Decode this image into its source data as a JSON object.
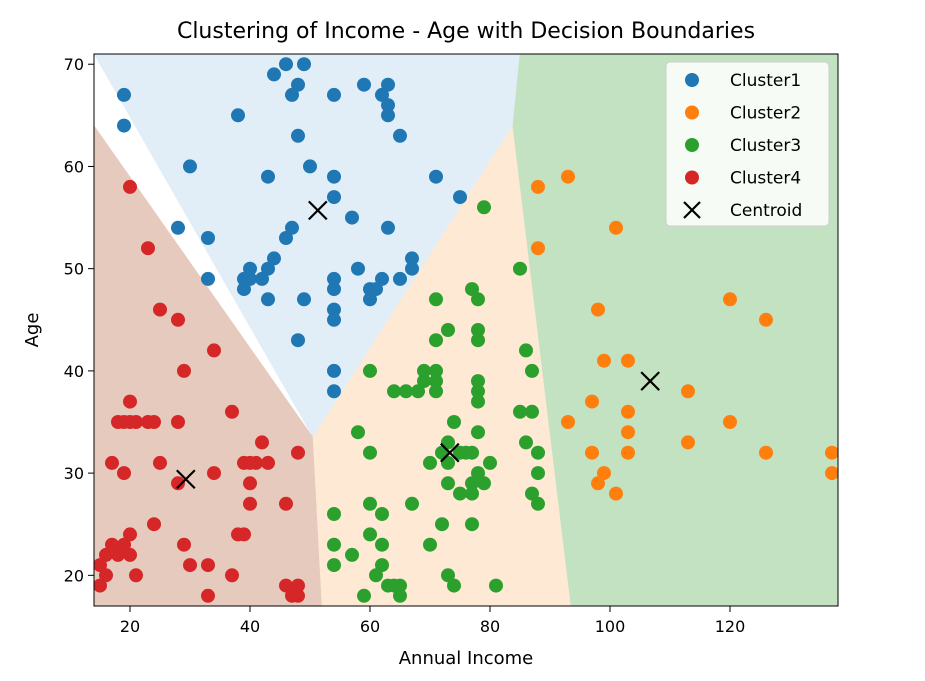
{
  "chart_data": {
    "type": "scatter",
    "title": "Clustering of Income - Age with Decision Boundaries",
    "xlabel": "Annual Income",
    "ylabel": "Age",
    "xlim": [
      14,
      138
    ],
    "ylim": [
      17,
      71
    ],
    "xticks": [
      20,
      40,
      60,
      80,
      100,
      120
    ],
    "yticks": [
      20,
      30,
      40,
      50,
      60,
      70
    ],
    "grid": false,
    "legend_position": "top-right",
    "regions": [
      {
        "cluster": "Cluster1",
        "color": "#e2eef7",
        "polygon": [
          [
            14,
            71
          ],
          [
            85,
            71
          ],
          [
            83.8,
            64
          ],
          [
            50.5,
            33.5
          ],
          [
            14,
            71
          ]
        ]
      },
      {
        "cluster": "Cluster4",
        "color": "#e7cabe",
        "polygon": [
          [
            14,
            64
          ],
          [
            50.5,
            33.5
          ],
          [
            52,
            17
          ],
          [
            14,
            17
          ]
        ]
      },
      {
        "cluster": "Cluster3",
        "color": "#fde9d4",
        "polygon": [
          [
            50.5,
            33.5
          ],
          [
            83.8,
            64
          ],
          [
            93.5,
            17
          ],
          [
            52,
            17
          ]
        ]
      },
      {
        "cluster": "Cluster2",
        "color": "#c3e2c2",
        "polygon": [
          [
            85,
            71
          ],
          [
            138,
            71
          ],
          [
            138,
            17
          ],
          [
            93.5,
            17
          ],
          [
            83.8,
            64
          ]
        ]
      }
    ],
    "series": [
      {
        "name": "Cluster1",
        "color": "#1f77b4",
        "points": [
          [
            19,
            67
          ],
          [
            19,
            64
          ],
          [
            28,
            54
          ],
          [
            30,
            60
          ],
          [
            33,
            53
          ],
          [
            33,
            49
          ],
          [
            38,
            65
          ],
          [
            39,
            48
          ],
          [
            39,
            49
          ],
          [
            40,
            49
          ],
          [
            40,
            50
          ],
          [
            42,
            49
          ],
          [
            43,
            47
          ],
          [
            43,
            50
          ],
          [
            43,
            59
          ],
          [
            44,
            69
          ],
          [
            44,
            51
          ],
          [
            46,
            53
          ],
          [
            46,
            70
          ],
          [
            47,
            54
          ],
          [
            47,
            67
          ],
          [
            48,
            68
          ],
          [
            48,
            63
          ],
          [
            48,
            43
          ],
          [
            49,
            70
          ],
          [
            49,
            47
          ],
          [
            50,
            60
          ],
          [
            54,
            59
          ],
          [
            54,
            57
          ],
          [
            54,
            49
          ],
          [
            54,
            48
          ],
          [
            54,
            46
          ],
          [
            54,
            45
          ],
          [
            54,
            40
          ],
          [
            54,
            38
          ],
          [
            54,
            67
          ],
          [
            57,
            55
          ],
          [
            58,
            50
          ],
          [
            59,
            68
          ],
          [
            60,
            48
          ],
          [
            60,
            47
          ],
          [
            61,
            48
          ],
          [
            62,
            67
          ],
          [
            62,
            49
          ],
          [
            63,
            68
          ],
          [
            63,
            66
          ],
          [
            63,
            65
          ],
          [
            63,
            54
          ],
          [
            65,
            49
          ],
          [
            65,
            63
          ],
          [
            67,
            50
          ],
          [
            67,
            51
          ],
          [
            71,
            59
          ],
          [
            75,
            57
          ]
        ]
      },
      {
        "name": "Cluster2",
        "color": "#ff7f0e",
        "points": [
          [
            88,
            58
          ],
          [
            88,
            52
          ],
          [
            93,
            59
          ],
          [
            93,
            35
          ],
          [
            97,
            32
          ],
          [
            97,
            37
          ],
          [
            98,
            46
          ],
          [
            98,
            29
          ],
          [
            99,
            41
          ],
          [
            99,
            30
          ],
          [
            101,
            54
          ],
          [
            101,
            28
          ],
          [
            103,
            41
          ],
          [
            103,
            36
          ],
          [
            103,
            34
          ],
          [
            103,
            32
          ],
          [
            113,
            38
          ],
          [
            113,
            33
          ],
          [
            120,
            47
          ],
          [
            120,
            35
          ],
          [
            126,
            45
          ],
          [
            126,
            32
          ],
          [
            137,
            32
          ],
          [
            137,
            30
          ]
        ]
      },
      {
        "name": "Cluster3",
        "color": "#2ca02c",
        "points": [
          [
            54,
            26
          ],
          [
            54,
            23
          ],
          [
            54,
            21
          ],
          [
            57,
            22
          ],
          [
            58,
            34
          ],
          [
            59,
            18
          ],
          [
            60,
            40
          ],
          [
            60,
            27
          ],
          [
            60,
            24
          ],
          [
            60,
            32
          ],
          [
            61,
            20
          ],
          [
            62,
            21
          ],
          [
            62,
            23
          ],
          [
            62,
            26
          ],
          [
            63,
            19
          ],
          [
            64,
            38
          ],
          [
            64,
            19
          ],
          [
            65,
            19
          ],
          [
            65,
            18
          ],
          [
            66,
            38
          ],
          [
            67,
            27
          ],
          [
            68,
            38
          ],
          [
            69,
            40
          ],
          [
            69,
            39
          ],
          [
            70,
            31
          ],
          [
            70,
            23
          ],
          [
            71,
            47
          ],
          [
            71,
            43
          ],
          [
            71,
            40
          ],
          [
            71,
            39
          ],
          [
            71,
            38
          ],
          [
            72,
            25
          ],
          [
            72,
            32
          ],
          [
            73,
            44
          ],
          [
            73,
            33
          ],
          [
            73,
            31
          ],
          [
            73,
            29
          ],
          [
            73,
            20
          ],
          [
            74,
            19
          ],
          [
            74,
            35
          ],
          [
            75,
            32
          ],
          [
            75,
            28
          ],
          [
            76,
            32
          ],
          [
            77,
            48
          ],
          [
            77,
            32
          ],
          [
            77,
            29
          ],
          [
            77,
            28
          ],
          [
            77,
            25
          ],
          [
            78,
            47
          ],
          [
            78,
            44
          ],
          [
            78,
            43
          ],
          [
            78,
            39
          ],
          [
            78,
            38
          ],
          [
            78,
            37
          ],
          [
            78,
            34
          ],
          [
            78,
            30
          ],
          [
            79,
            56
          ],
          [
            79,
            29
          ],
          [
            80,
            31
          ],
          [
            81,
            19
          ],
          [
            85,
            50
          ],
          [
            85,
            36
          ],
          [
            86,
            42
          ],
          [
            86,
            33
          ],
          [
            87,
            36
          ],
          [
            87,
            28
          ],
          [
            88,
            32
          ],
          [
            88,
            30
          ],
          [
            88,
            27
          ],
          [
            87,
            40
          ]
        ]
      },
      {
        "name": "Cluster4",
        "color": "#d62728",
        "points": [
          [
            15,
            21
          ],
          [
            15,
            19
          ],
          [
            16,
            20
          ],
          [
            16,
            22
          ],
          [
            17,
            23
          ],
          [
            17,
            31
          ],
          [
            18,
            22
          ],
          [
            18,
            35
          ],
          [
            19,
            35
          ],
          [
            19,
            30
          ],
          [
            19,
            23
          ],
          [
            20,
            58
          ],
          [
            20,
            37
          ],
          [
            20,
            35
          ],
          [
            20,
            24
          ],
          [
            20,
            22
          ],
          [
            21,
            20
          ],
          [
            21,
            35
          ],
          [
            23,
            52
          ],
          [
            23,
            35
          ],
          [
            24,
            35
          ],
          [
            24,
            25
          ],
          [
            25,
            46
          ],
          [
            25,
            31
          ],
          [
            28,
            45
          ],
          [
            28,
            35
          ],
          [
            28,
            29
          ],
          [
            29,
            40
          ],
          [
            29,
            23
          ],
          [
            30,
            21
          ],
          [
            33,
            21
          ],
          [
            33,
            18
          ],
          [
            34,
            42
          ],
          [
            34,
            30
          ],
          [
            37,
            36
          ],
          [
            37,
            20
          ],
          [
            38,
            24
          ],
          [
            39,
            24
          ],
          [
            39,
            31
          ],
          [
            40,
            31
          ],
          [
            40,
            29
          ],
          [
            40,
            27
          ],
          [
            41,
            31
          ],
          [
            42,
            33
          ],
          [
            43,
            31
          ],
          [
            46,
            27
          ],
          [
            46,
            19
          ],
          [
            47,
            18
          ],
          [
            48,
            32
          ],
          [
            48,
            19
          ],
          [
            48,
            18
          ]
        ]
      }
    ],
    "centroids": {
      "name": "Centroid",
      "color": "#000000",
      "points": [
        [
          51.3,
          55.7
        ],
        [
          106.7,
          39.0
        ],
        [
          73.3,
          32.0
        ],
        [
          29.3,
          29.4
        ]
      ]
    }
  }
}
